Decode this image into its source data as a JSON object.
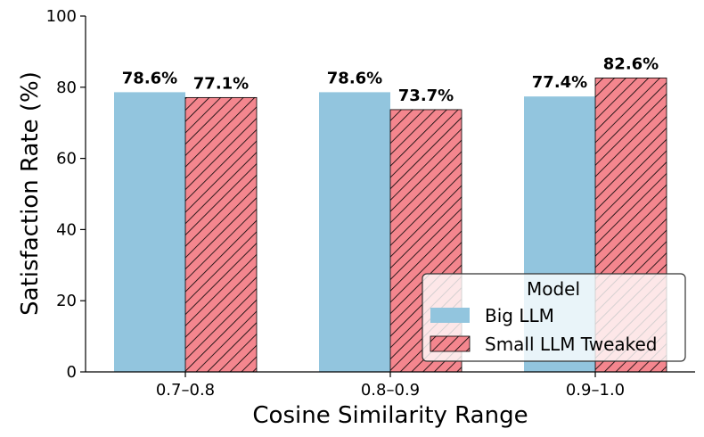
{
  "chart_data": {
    "type": "bar",
    "title": "",
    "xlabel": "Cosine Similarity Range",
    "ylabel": "Satisfaction Rate (%)",
    "ylim": [
      0,
      100
    ],
    "yticks": [
      0,
      20,
      40,
      60,
      80,
      100
    ],
    "categories": [
      "0.7–0.8",
      "0.8–0.9",
      "0.9–1.0"
    ],
    "series": [
      {
        "name": "Big LLM",
        "values": [
          78.6,
          78.6,
          77.4
        ],
        "labels": [
          "78.6%",
          "78.6%",
          "77.4%"
        ],
        "color": "#92c5de",
        "hatch": false
      },
      {
        "name": "Small LLM Tweaked",
        "values": [
          77.1,
          73.7,
          82.6
        ],
        "labels": [
          "77.1%",
          "73.7%",
          "82.6%"
        ],
        "color": "#f4868e",
        "hatch": true
      }
    ],
    "legend": {
      "title": "Model",
      "position": "bottom-right"
    },
    "grid": false
  }
}
